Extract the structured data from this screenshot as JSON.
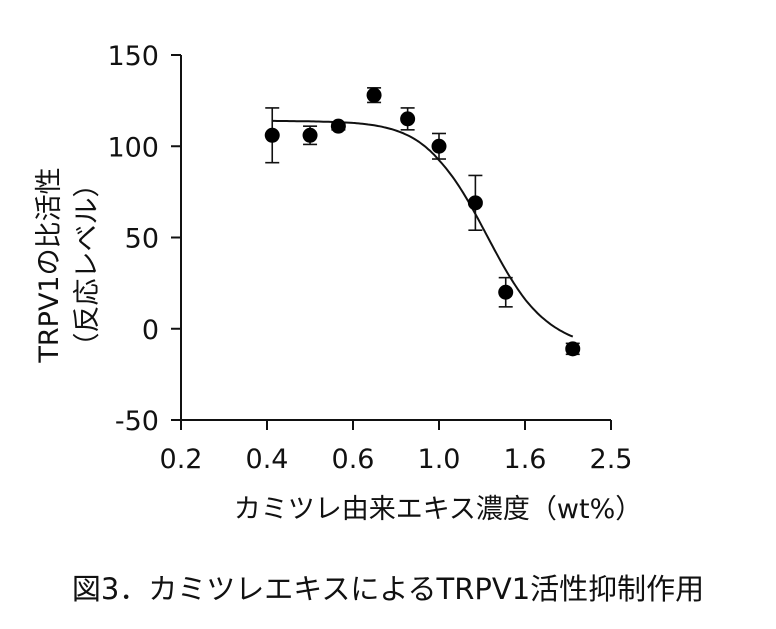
{
  "chart_data": {
    "type": "scatter",
    "xlabel": "カミツレ由来エキス濃度（wt%）",
    "ylabel_line1": "TRPV1の比活性",
    "ylabel_line2": "（反応レベル）",
    "x_tick_labels": [
      "0.2",
      "0.4",
      "0.6",
      "1.0",
      "1.6",
      "2.5"
    ],
    "y_ticks": [
      150,
      100,
      50,
      0,
      -50
    ],
    "y_tick_labels": [
      "150",
      "100",
      "50",
      "0",
      "-50"
    ],
    "ylim": [
      -50,
      150
    ],
    "x_scale": "log",
    "grid": false,
    "points": [
      {
        "x": 0.41,
        "y": 106,
        "err": 15
      },
      {
        "x": 0.49,
        "y": 106,
        "err": 5
      },
      {
        "x": 0.56,
        "y": 111,
        "err": 2
      },
      {
        "x": 0.68,
        "y": 128,
        "err": 4
      },
      {
        "x": 0.83,
        "y": 115,
        "err": 6
      },
      {
        "x": 1.0,
        "y": 100,
        "err": 7
      },
      {
        "x": 1.22,
        "y": 69,
        "err": 15
      },
      {
        "x": 1.44,
        "y": 20,
        "err": 8
      },
      {
        "x": 2.05,
        "y": -11,
        "err": 3
      }
    ],
    "fit_curve": {
      "top": 114,
      "bottom": -12,
      "ec50": 1.3,
      "hill": 6
    }
  },
  "caption": "図3．カミツレエキスによるTRPV1活性抑制作用"
}
